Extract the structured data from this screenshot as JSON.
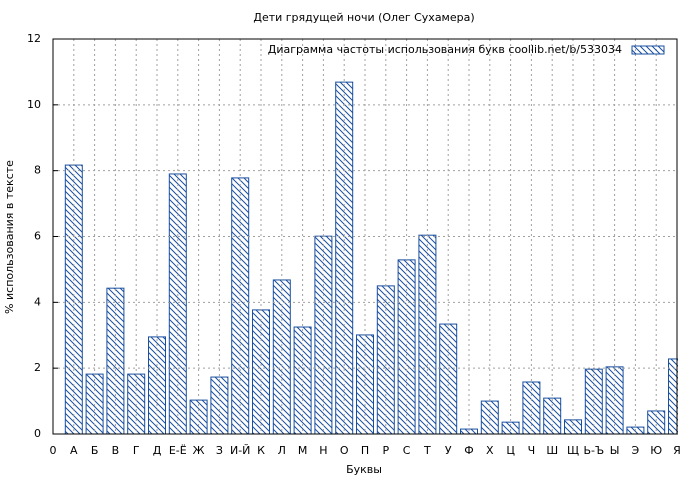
{
  "chart_data": {
    "type": "bar",
    "title": "Дети грядущей ночи (Олег Сухамера)",
    "x_label": "Буквы",
    "y_label": "% использования в тексте",
    "categories": [
      "0",
      "А",
      "Б",
      "В",
      "Г",
      "Д",
      "Е-Ё",
      "Ж",
      "З",
      "И-Й",
      "К",
      "Л",
      "М",
      "Н",
      "О",
      "П",
      "Р",
      "С",
      "Т",
      "У",
      "Ф",
      "Х",
      "Ц",
      "Ч",
      "Ш",
      "Щ",
      "Ь-Ъ",
      "Ы",
      "Э",
      "Ю",
      "Я"
    ],
    "series": [
      {
        "name": "Диаграмма частоты использования букв  coollib.net/b/533034",
        "color": "#1a4fa0",
        "values": [
          null,
          8.17,
          1.82,
          4.43,
          1.82,
          2.95,
          7.9,
          1.03,
          1.73,
          7.78,
          3.77,
          4.68,
          3.25,
          6.01,
          10.69,
          3.01,
          4.5,
          5.29,
          6.04,
          3.34,
          0.15,
          1.0,
          0.36,
          1.58,
          1.09,
          0.43,
          1.97,
          2.04,
          0.21,
          0.7,
          2.28
        ]
      }
    ],
    "ylim": [
      0,
      12
    ],
    "yticks": [
      0,
      2,
      4,
      6,
      8,
      10,
      12
    ],
    "grid": true,
    "legend": "top-right"
  }
}
